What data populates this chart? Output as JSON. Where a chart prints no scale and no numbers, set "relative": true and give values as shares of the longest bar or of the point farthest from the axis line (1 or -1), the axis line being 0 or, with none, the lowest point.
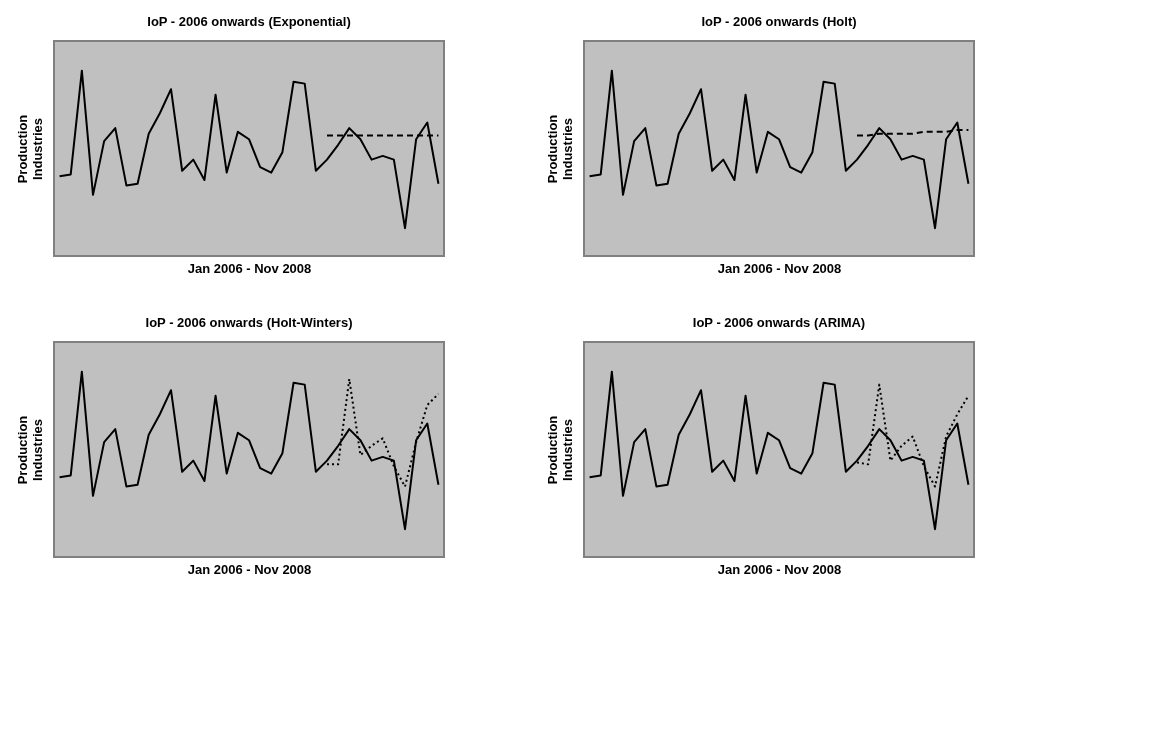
{
  "chart_data": [
    {
      "type": "line",
      "title": "IoP - 2006 onwards (Exponential)",
      "xlabel": "Jan 2006 - Nov 2008",
      "ylabel": "Production\nIndustries",
      "relative": true,
      "tick_labels": false,
      "grid": false,
      "categories": [
        null,
        null,
        null,
        null,
        null,
        null,
        null,
        null,
        null,
        null,
        null,
        null,
        null,
        null,
        null,
        null,
        null,
        null,
        null,
        null,
        null,
        null,
        null,
        null,
        null,
        null,
        null,
        null,
        null,
        null,
        null,
        null,
        null,
        null,
        null
      ],
      "series": [
        {
          "color": "#000000",
          "line_style": "solid",
          "values": [
            0.43,
            0.44,
            1,
            0.33,
            0.62,
            0.69,
            0.38,
            0.39,
            0.66,
            0.77,
            0.9,
            0.46,
            0.52,
            0.41,
            0.87,
            0.45,
            0.67,
            0.63,
            0.48,
            0.45,
            0.56,
            0.94,
            0.93,
            0.46,
            0.52,
            0.6,
            0.69,
            0.63,
            0.52,
            0.54,
            0.52,
            0.15,
            0.63,
            0.72,
            0.39
          ]
        },
        {
          "color": "#000000",
          "line_style": "dashed",
          "values": [
            null,
            null,
            null,
            null,
            null,
            null,
            null,
            null,
            null,
            null,
            null,
            null,
            null,
            null,
            null,
            null,
            null,
            null,
            null,
            null,
            null,
            null,
            null,
            null,
            0.65,
            0.65,
            0.65,
            0.65,
            0.65,
            0.65,
            0.65,
            0.65,
            0.65,
            0.65,
            0.65
          ]
        }
      ]
    },
    {
      "type": "line",
      "title": "IoP - 2006 onwards (Holt)",
      "xlabel": "Jan 2006 - Nov 2008",
      "ylabel": "Production\nIndustries",
      "relative": true,
      "tick_labels": false,
      "grid": false,
      "categories": [
        null,
        null,
        null,
        null,
        null,
        null,
        null,
        null,
        null,
        null,
        null,
        null,
        null,
        null,
        null,
        null,
        null,
        null,
        null,
        null,
        null,
        null,
        null,
        null,
        null,
        null,
        null,
        null,
        null,
        null,
        null,
        null,
        null,
        null,
        null
      ],
      "series": [
        {
          "color": "#000000",
          "line_style": "solid",
          "values": [
            0.43,
            0.44,
            1,
            0.33,
            0.62,
            0.69,
            0.38,
            0.39,
            0.66,
            0.77,
            0.9,
            0.46,
            0.52,
            0.41,
            0.87,
            0.45,
            0.67,
            0.63,
            0.48,
            0.45,
            0.56,
            0.94,
            0.93,
            0.46,
            0.52,
            0.6,
            0.69,
            0.63,
            0.52,
            0.54,
            0.52,
            0.15,
            0.63,
            0.72,
            0.39
          ]
        },
        {
          "color": "#000000",
          "line_style": "dashed",
          "values": [
            null,
            null,
            null,
            null,
            null,
            null,
            null,
            null,
            null,
            null,
            null,
            null,
            null,
            null,
            null,
            null,
            null,
            null,
            null,
            null,
            null,
            null,
            null,
            null,
            0.65,
            0.65,
            0.66,
            0.66,
            0.66,
            0.66,
            0.67,
            0.67,
            0.67,
            0.68,
            0.68
          ]
        }
      ]
    },
    {
      "type": "line",
      "title": "IoP - 2006 onwards (Holt-Winters)",
      "xlabel": "Jan 2006 - Nov 2008",
      "ylabel": "Production\nIndustries",
      "relative": true,
      "tick_labels": false,
      "grid": false,
      "categories": [
        null,
        null,
        null,
        null,
        null,
        null,
        null,
        null,
        null,
        null,
        null,
        null,
        null,
        null,
        null,
        null,
        null,
        null,
        null,
        null,
        null,
        null,
        null,
        null,
        null,
        null,
        null,
        null,
        null,
        null,
        null,
        null,
        null,
        null,
        null
      ],
      "series": [
        {
          "color": "#000000",
          "line_style": "solid",
          "values": [
            0.43,
            0.44,
            1,
            0.33,
            0.62,
            0.69,
            0.38,
            0.39,
            0.66,
            0.77,
            0.9,
            0.46,
            0.52,
            0.41,
            0.87,
            0.45,
            0.67,
            0.63,
            0.48,
            0.45,
            0.56,
            0.94,
            0.93,
            0.46,
            0.52,
            0.6,
            0.69,
            0.63,
            0.52,
            0.54,
            0.52,
            0.15,
            0.63,
            0.72,
            0.39
          ]
        },
        {
          "color": "#000000",
          "line_style": "dotted",
          "values": [
            null,
            null,
            null,
            null,
            null,
            null,
            null,
            null,
            null,
            null,
            null,
            null,
            null,
            null,
            null,
            null,
            null,
            null,
            null,
            null,
            null,
            null,
            null,
            null,
            0.5,
            0.5,
            0.96,
            0.55,
            0.6,
            0.64,
            0.49,
            0.38,
            0.62,
            0.82,
            0.88
          ]
        }
      ]
    },
    {
      "type": "line",
      "title": "IoP - 2006 onwards (ARIMA)",
      "xlabel": "Jan 2006 - Nov 2008",
      "ylabel": "Production\nIndustries",
      "relative": true,
      "tick_labels": false,
      "grid": false,
      "categories": [
        null,
        null,
        null,
        null,
        null,
        null,
        null,
        null,
        null,
        null,
        null,
        null,
        null,
        null,
        null,
        null,
        null,
        null,
        null,
        null,
        null,
        null,
        null,
        null,
        null,
        null,
        null,
        null,
        null,
        null,
        null,
        null,
        null,
        null,
        null
      ],
      "series": [
        {
          "color": "#000000",
          "line_style": "solid",
          "values": [
            0.43,
            0.44,
            1,
            0.33,
            0.62,
            0.69,
            0.38,
            0.39,
            0.66,
            0.77,
            0.9,
            0.46,
            0.52,
            0.41,
            0.87,
            0.45,
            0.67,
            0.63,
            0.48,
            0.45,
            0.56,
            0.94,
            0.93,
            0.46,
            0.52,
            0.6,
            0.69,
            0.63,
            0.52,
            0.54,
            0.52,
            0.15,
            0.63,
            0.72,
            0.39
          ]
        },
        {
          "color": "#000000",
          "line_style": "dotted",
          "values": [
            null,
            null,
            null,
            null,
            null,
            null,
            null,
            null,
            null,
            null,
            null,
            null,
            null,
            null,
            null,
            null,
            null,
            null,
            null,
            null,
            null,
            null,
            null,
            null,
            0.51,
            0.5,
            0.93,
            0.52,
            0.6,
            0.65,
            0.49,
            0.38,
            0.65,
            0.77,
            0.87
          ]
        }
      ]
    }
  ]
}
